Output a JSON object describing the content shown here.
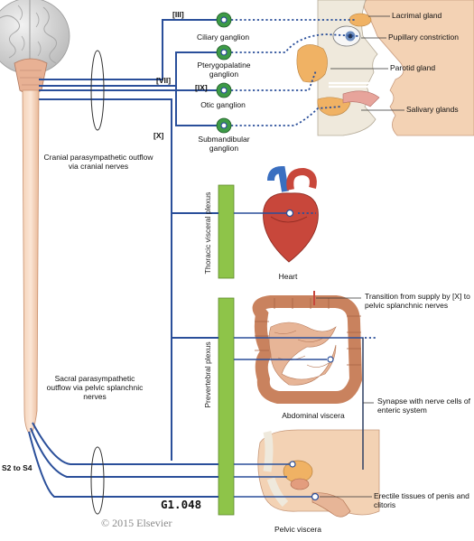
{
  "figure_code": "G1.048",
  "copyright": "© 2015 Elsevier",
  "nerves": {
    "iii": "[III]",
    "vii": "[VII]",
    "ix": "[IX]",
    "x": "[X]"
  },
  "ganglia": {
    "ciliary": "Ciliary ganglion",
    "pterygopalatine": "Pterygopalatine ganglion",
    "otic": "Otic ganglion",
    "submandibular": "Submandibular ganglion"
  },
  "targets": {
    "lacrimal": "Lacrimal gland",
    "pupillary": "Pupillary constriction",
    "parotid": "Parotid gland",
    "salivary": "Salivary glands"
  },
  "outflows": {
    "cranial": "Cranial parasympathetic outflow via cranial nerves",
    "sacral": "Sacral parasympathetic outflow via pelvic splanchnic nerves",
    "segments": "S2 to S4"
  },
  "plexuses": {
    "thoracic": "Thoracic visceral plexus",
    "prevertebral": "Prevertebral plexus"
  },
  "organs": {
    "heart": "Heart",
    "abdominal": "Abdominal viscera",
    "pelvic": "Pelvic viscera"
  },
  "annotations": {
    "transition": "Transition from supply by [X] to pelvic splanchnic nerves",
    "synapse": "Synapse with nerve cells of enteric system",
    "erectile": "Erectile tissues of penis and clitoris"
  },
  "colors": {
    "nerve": "#2a4f9a",
    "ganglion": "#3d9a46",
    "plexus": "#8ec449",
    "spine": "#f2c9ad",
    "brain": "#d9d9d9",
    "skin": "#f3d2b4",
    "gland": "#f0b264",
    "heart": "#c8473b",
    "intestine": "#c9825e"
  }
}
